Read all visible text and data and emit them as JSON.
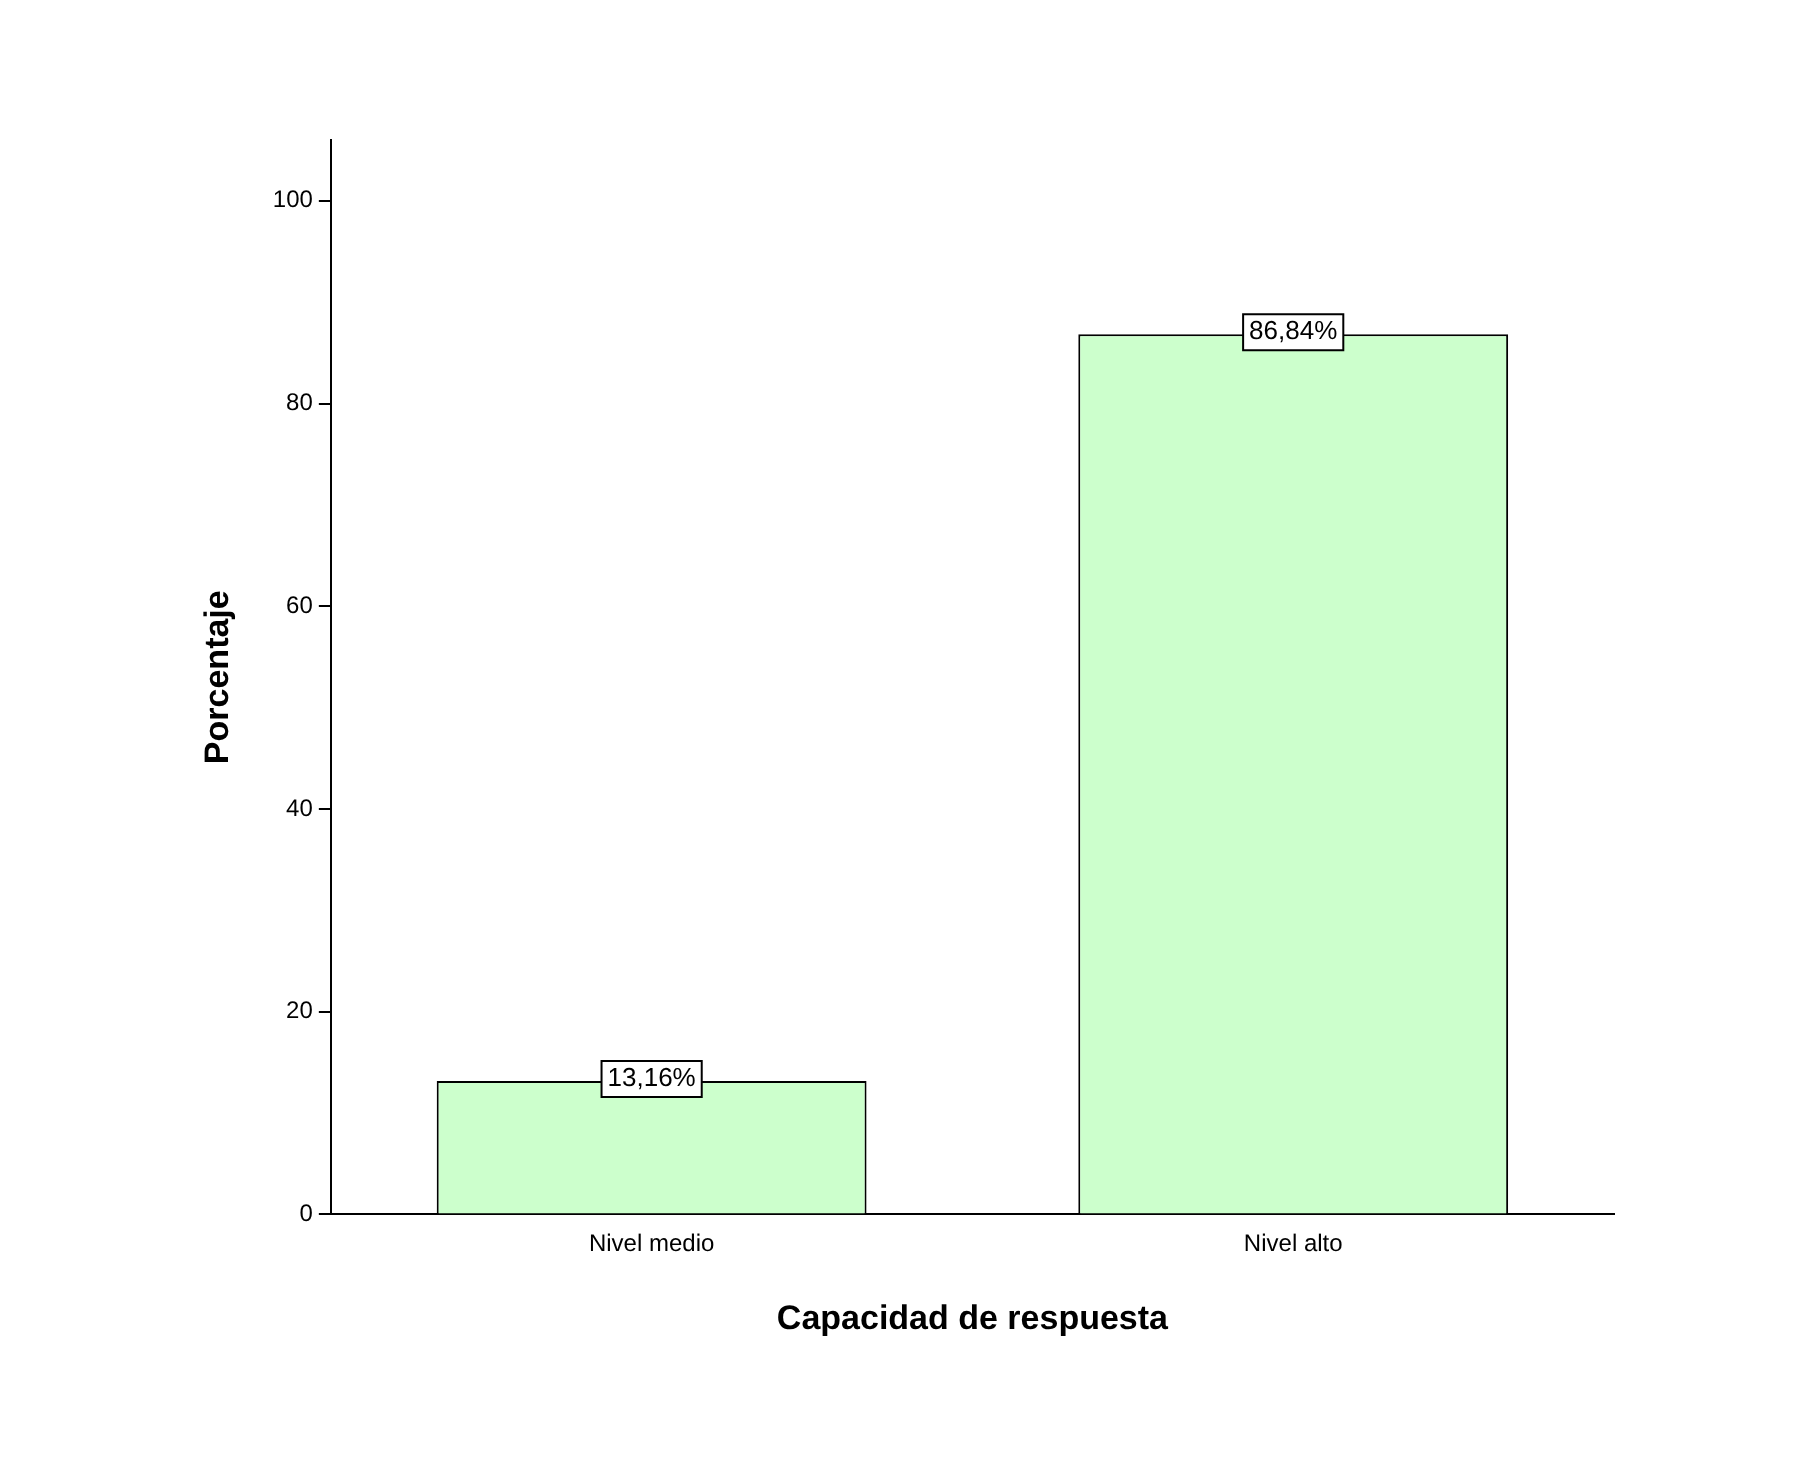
{
  "chart_data": {
    "type": "bar",
    "xlabel": "Capacidad de respuesta",
    "ylabel": "Porcentaje",
    "categories": [
      "Nivel medio",
      "Nivel alto"
    ],
    "values": [
      13.16,
      86.84
    ],
    "value_labels": [
      "13,16%",
      "86,84%"
    ],
    "color": "#ccffcc",
    "ylim": [
      0,
      106
    ],
    "yticks": [
      0,
      20,
      40,
      60,
      80,
      100
    ],
    "grid": false,
    "legend": false
  }
}
